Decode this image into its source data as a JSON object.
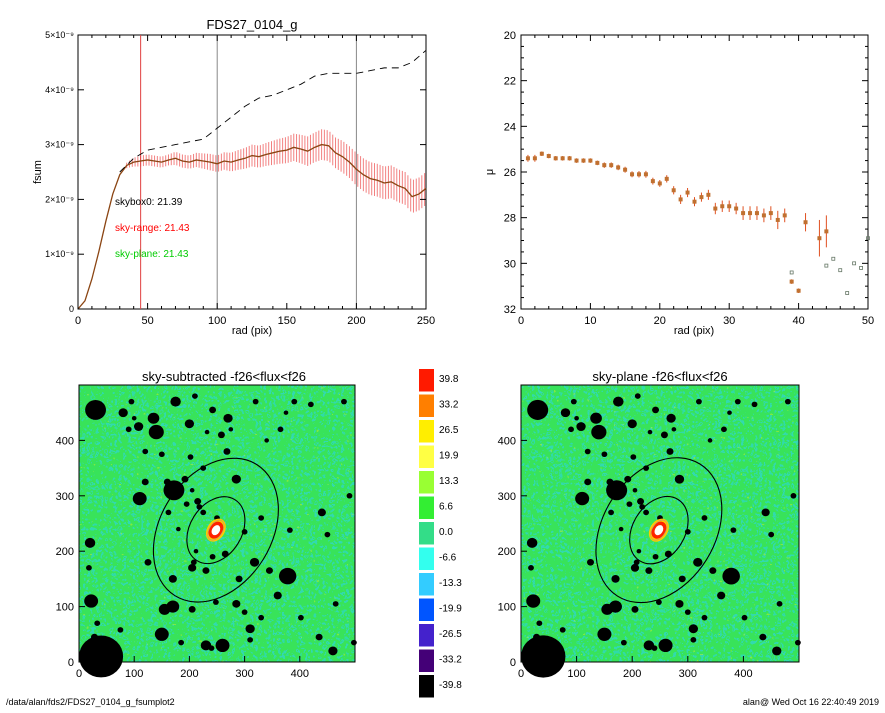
{
  "footer": {
    "path": "/data/alan/fds2/FDS27_0104_g_fsumplot2",
    "user_stamp": "alan@  Wed Oct 16 22:40:49 2019"
  },
  "colors": {
    "profile": "#8b4513",
    "error_band": "#f28080",
    "sky_range": "#ff0000",
    "sky_plane": "#00cc00",
    "marker_line": "#888888",
    "ellipse": "#000000",
    "mask": "#000000"
  },
  "chart_data": [
    {
      "type": "line",
      "title": "FDS27_0104_g",
      "xlabel": "rad (pix)",
      "ylabel": "fsum",
      "xlim": [
        0,
        250
      ],
      "ylim": [
        0,
        5e-09
      ],
      "x_ticks": [
        "0",
        "50",
        "100",
        "150",
        "200",
        "250"
      ],
      "y_ticks": [
        "0",
        "1×10⁻⁹",
        "2×10⁻⁹",
        "3×10⁻⁹",
        "4×10⁻⁹",
        "5×10⁻⁹"
      ],
      "y_tick_values": [
        0,
        1e-09,
        2e-09,
        3e-09,
        4e-09,
        5e-09
      ],
      "vertical_lines": [
        {
          "x": 45,
          "color": "red"
        },
        {
          "x": 100,
          "color": "gray"
        },
        {
          "x": 200,
          "color": "gray"
        }
      ],
      "annotations": [
        {
          "text": "skybox0: 21.39",
          "color": "black"
        },
        {
          "text": "sky-range: 21.43",
          "color": "red"
        },
        {
          "text": "sky-plane: 21.43",
          "color": "green"
        }
      ],
      "series": [
        {
          "style": "solid",
          "x": [
            0,
            5,
            10,
            15,
            20,
            25,
            30,
            35,
            40,
            45,
            50,
            55,
            60,
            65,
            70,
            75,
            80,
            85,
            90,
            95,
            100,
            105,
            110,
            115,
            120,
            125,
            130,
            135,
            140,
            145,
            150,
            155,
            160,
            165,
            170,
            175,
            180,
            185,
            190,
            195,
            200,
            205,
            210,
            215,
            220,
            225,
            230,
            235,
            240,
            245,
            250
          ],
          "y": [
            0,
            1.5e-10,
            5.5e-10,
            1.05e-09,
            1.6e-09,
            2.1e-09,
            2.45e-09,
            2.62e-09,
            2.68e-09,
            2.7e-09,
            2.72e-09,
            2.7e-09,
            2.68e-09,
            2.72e-09,
            2.75e-09,
            2.7e-09,
            2.68e-09,
            2.72e-09,
            2.7e-09,
            2.68e-09,
            2.65e-09,
            2.7e-09,
            2.68e-09,
            2.72e-09,
            2.75e-09,
            2.8e-09,
            2.78e-09,
            2.82e-09,
            2.85e-09,
            2.88e-09,
            2.9e-09,
            2.95e-09,
            2.92e-09,
            2.88e-09,
            2.95e-09,
            3e-09,
            2.98e-09,
            2.85e-09,
            2.78e-09,
            2.68e-09,
            2.55e-09,
            2.45e-09,
            2.38e-09,
            2.35e-09,
            2.3e-09,
            2.32e-09,
            2.25e-09,
            2.2e-09,
            2.05e-09,
            2.1e-09,
            2.2e-09
          ],
          "err": [
            0,
            0,
            0,
            0,
            0,
            0,
            0,
            5e-11,
            8e-11,
            1e-10,
            1e-10,
            1e-10,
            1e-10,
            1e-10,
            1.2e-10,
            1.2e-10,
            1.2e-10,
            1.3e-10,
            1.4e-10,
            1.5e-10,
            1.5e-10,
            1.6e-10,
            1.7e-10,
            1.8e-10,
            1.9e-10,
            2e-10,
            2e-10,
            2.1e-10,
            2.2e-10,
            2.3e-10,
            2.4e-10,
            2.5e-10,
            2.6e-10,
            2.7e-10,
            2.7e-10,
            2.8e-10,
            2.8e-10,
            2.8e-10,
            2.9e-10,
            2.9e-10,
            3e-10,
            3e-10,
            3e-10,
            3e-10,
            3e-10,
            3e-10,
            3e-10,
            3e-10,
            3e-10,
            3e-10,
            3e-10
          ]
        },
        {
          "style": "dashed",
          "x": [
            30,
            40,
            50,
            60,
            70,
            80,
            90,
            100,
            110,
            120,
            130,
            140,
            150,
            160,
            170,
            180,
            190,
            200,
            210,
            220,
            230,
            240,
            250
          ],
          "y": [
            2.5e-09,
            2.75e-09,
            2.9e-09,
            2.95e-09,
            3e-09,
            3.05e-09,
            3.1e-09,
            3.3e-09,
            3.5e-09,
            3.7e-09,
            3.85e-09,
            3.9e-09,
            4e-09,
            4.1e-09,
            4.25e-09,
            4.3e-09,
            4.3e-09,
            4.3e-09,
            4.35e-09,
            4.4e-09,
            4.4e-09,
            4.5e-09,
            4.72e-09
          ]
        }
      ]
    },
    {
      "type": "scatter",
      "title": "",
      "xlabel": "rad (pix)",
      "ylabel": "μ",
      "xlim": [
        0,
        50
      ],
      "ylim": [
        32,
        20
      ],
      "x_ticks": [
        "0",
        "10",
        "20",
        "30",
        "40",
        "50"
      ],
      "y_ticks": [
        "20",
        "22",
        "24",
        "26",
        "28",
        "30",
        "32"
      ],
      "series": [
        {
          "x": [
            1,
            2,
            3,
            4,
            5,
            6,
            7,
            8,
            9,
            10,
            11,
            12,
            13,
            14,
            15,
            16,
            17,
            18,
            19,
            20,
            21,
            22,
            23,
            24,
            25,
            26,
            27,
            28,
            29,
            30,
            31,
            32,
            33,
            34,
            35,
            36,
            37,
            38,
            39,
            40,
            41,
            43,
            44
          ],
          "y": [
            25.4,
            25.4,
            25.2,
            25.3,
            25.4,
            25.4,
            25.4,
            25.5,
            25.5,
            25.5,
            25.6,
            25.7,
            25.7,
            25.8,
            25.9,
            26.1,
            26.1,
            26.1,
            26.4,
            26.5,
            26.3,
            26.8,
            27.2,
            26.9,
            27.3,
            27.1,
            27.0,
            27.6,
            27.5,
            27.5,
            27.6,
            27.8,
            27.8,
            27.8,
            27.9,
            27.8,
            28.1,
            27.9,
            30.8,
            31.2,
            28.2,
            28.9,
            28.6
          ],
          "err": [
            0.15,
            0.15,
            0.1,
            0.1,
            0.1,
            0.1,
            0.1,
            0.1,
            0.1,
            0.1,
            0.1,
            0.12,
            0.12,
            0.12,
            0.13,
            0.13,
            0.14,
            0.15,
            0.15,
            0.15,
            0.16,
            0.18,
            0.2,
            0.2,
            0.2,
            0.2,
            0.22,
            0.25,
            0.25,
            0.25,
            0.25,
            0.3,
            0.3,
            0.3,
            0.3,
            0.3,
            0.4,
            0.3,
            0.1,
            0.1,
            0.4,
            0.8,
            0.7
          ]
        },
        {
          "style": "open",
          "x": [
            39,
            44,
            45,
            46,
            47,
            48,
            49,
            50
          ],
          "y": [
            30.4,
            30.1,
            29.8,
            30.3,
            31.3,
            30.0,
            30.2,
            28.9
          ]
        }
      ]
    },
    {
      "type": "heatmap",
      "title": "sky-subtracted -f26<flux<f26",
      "xlim": [
        0,
        500
      ],
      "ylim": [
        0,
        500
      ],
      "x_ticks": [
        "0",
        "100",
        "200",
        "300",
        "400"
      ],
      "y_ticks": [
        "0",
        "100",
        "200",
        "300",
        "400"
      ],
      "galaxy_center": [
        248,
        238
      ],
      "ellipses_semimajor": [
        65,
        140
      ],
      "ellipse_axis_ratio": 0.72,
      "ellipse_pa_deg": 58
    },
    {
      "type": "heatmap",
      "title": "sky-plane -f26<flux<f26",
      "xlim": [
        0,
        500
      ],
      "ylim": [
        0,
        500
      ],
      "x_ticks": [
        "0",
        "100",
        "200",
        "300",
        "400"
      ],
      "y_ticks": [
        "0",
        "100",
        "200",
        "300",
        "400"
      ],
      "galaxy_center": [
        248,
        238
      ],
      "ellipses_semimajor": [
        65,
        140
      ],
      "ellipse_axis_ratio": 0.72,
      "ellipse_pa_deg": 58
    }
  ],
  "colorbar": {
    "labels": [
      "39.8",
      "33.2",
      "26.5",
      "19.9",
      "13.3",
      "6.6",
      "0.0",
      "-6.6",
      "-13.3",
      "-19.9",
      "-26.5",
      "-33.2",
      "-39.8"
    ],
    "colors": [
      "#ff1a00",
      "#ff7f00",
      "#ffee00",
      "#ffff44",
      "#99ff33",
      "#33ee33",
      "#33dd88",
      "#33ffee",
      "#33ccff",
      "#0055ff",
      "#4422cc",
      "#440077",
      "#000000"
    ]
  },
  "mask_sources": [
    [
      30,
      455,
      18
    ],
    [
      20,
      215,
      9
    ],
    [
      18,
      170,
      5
    ],
    [
      22,
      110,
      12
    ],
    [
      33,
      70,
      5
    ],
    [
      28,
      45,
      6
    ],
    [
      40,
      10,
      38
    ],
    [
      62,
      28,
      8
    ],
    [
      75,
      58,
      5
    ],
    [
      80,
      450,
      8
    ],
    [
      90,
      420,
      5
    ],
    [
      95,
      470,
      5
    ],
    [
      100,
      440,
      4
    ],
    [
      108,
      425,
      8
    ],
    [
      110,
      295,
      12
    ],
    [
      120,
      380,
      5
    ],
    [
      120,
      325,
      6
    ],
    [
      125,
      180,
      6
    ],
    [
      135,
      440,
      10
    ],
    [
      140,
      415,
      13
    ],
    [
      150,
      375,
      5
    ],
    [
      150,
      50,
      12
    ],
    [
      155,
      95,
      10
    ],
    [
      160,
      325,
      6
    ],
    [
      162,
      270,
      5
    ],
    [
      170,
      150,
      7
    ],
    [
      170,
      100,
      11
    ],
    [
      172,
      310,
      18
    ],
    [
      175,
      470,
      9
    ],
    [
      180,
      240,
      4
    ],
    [
      185,
      35,
      5
    ],
    [
      192,
      330,
      6
    ],
    [
      195,
      285,
      5
    ],
    [
      200,
      430,
      8
    ],
    [
      202,
      370,
      5
    ],
    [
      205,
      170,
      7
    ],
    [
      205,
      310,
      4
    ],
    [
      205,
      95,
      6
    ],
    [
      208,
      180,
      5
    ],
    [
      210,
      480,
      5
    ],
    [
      212,
      200,
      4
    ],
    [
      215,
      290,
      6
    ],
    [
      218,
      280,
      5
    ],
    [
      225,
      350,
      5
    ],
    [
      225,
      270,
      5
    ],
    [
      230,
      165,
      6
    ],
    [
      230,
      30,
      9
    ],
    [
      232,
      415,
      4
    ],
    [
      240,
      25,
      5
    ],
    [
      242,
      455,
      6
    ],
    [
      242,
      190,
      5
    ],
    [
      248,
      108,
      5
    ],
    [
      250,
      260,
      5
    ],
    [
      252,
      248,
      4
    ],
    [
      258,
      410,
      6
    ],
    [
      260,
      30,
      12
    ],
    [
      265,
      195,
      6
    ],
    [
      268,
      380,
      6
    ],
    [
      270,
      440,
      8
    ],
    [
      275,
      420,
      4
    ],
    [
      285,
      105,
      7
    ],
    [
      285,
      330,
      8
    ],
    [
      290,
      150,
      6
    ],
    [
      300,
      235,
      5
    ],
    [
      300,
      90,
      5
    ],
    [
      310,
      40,
      5
    ],
    [
      310,
      60,
      8
    ],
    [
      318,
      180,
      8
    ],
    [
      320,
      470,
      5
    ],
    [
      330,
      80,
      5
    ],
    [
      330,
      260,
      5
    ],
    [
      340,
      400,
      4
    ],
    [
      345,
      165,
      6
    ],
    [
      360,
      120,
      7
    ],
    [
      365,
      420,
      5
    ],
    [
      375,
      450,
      4
    ],
    [
      378,
      155,
      15
    ],
    [
      382,
      238,
      5
    ],
    [
      390,
      470,
      5
    ],
    [
      402,
      80,
      5
    ],
    [
      420,
      465,
      5
    ],
    [
      435,
      45,
      6
    ],
    [
      440,
      270,
      7
    ],
    [
      450,
      230,
      5
    ],
    [
      460,
      20,
      8
    ],
    [
      465,
      105,
      5
    ],
    [
      480,
      470,
      5
    ],
    [
      490,
      300,
      5
    ],
    [
      498,
      35,
      5
    ]
  ]
}
